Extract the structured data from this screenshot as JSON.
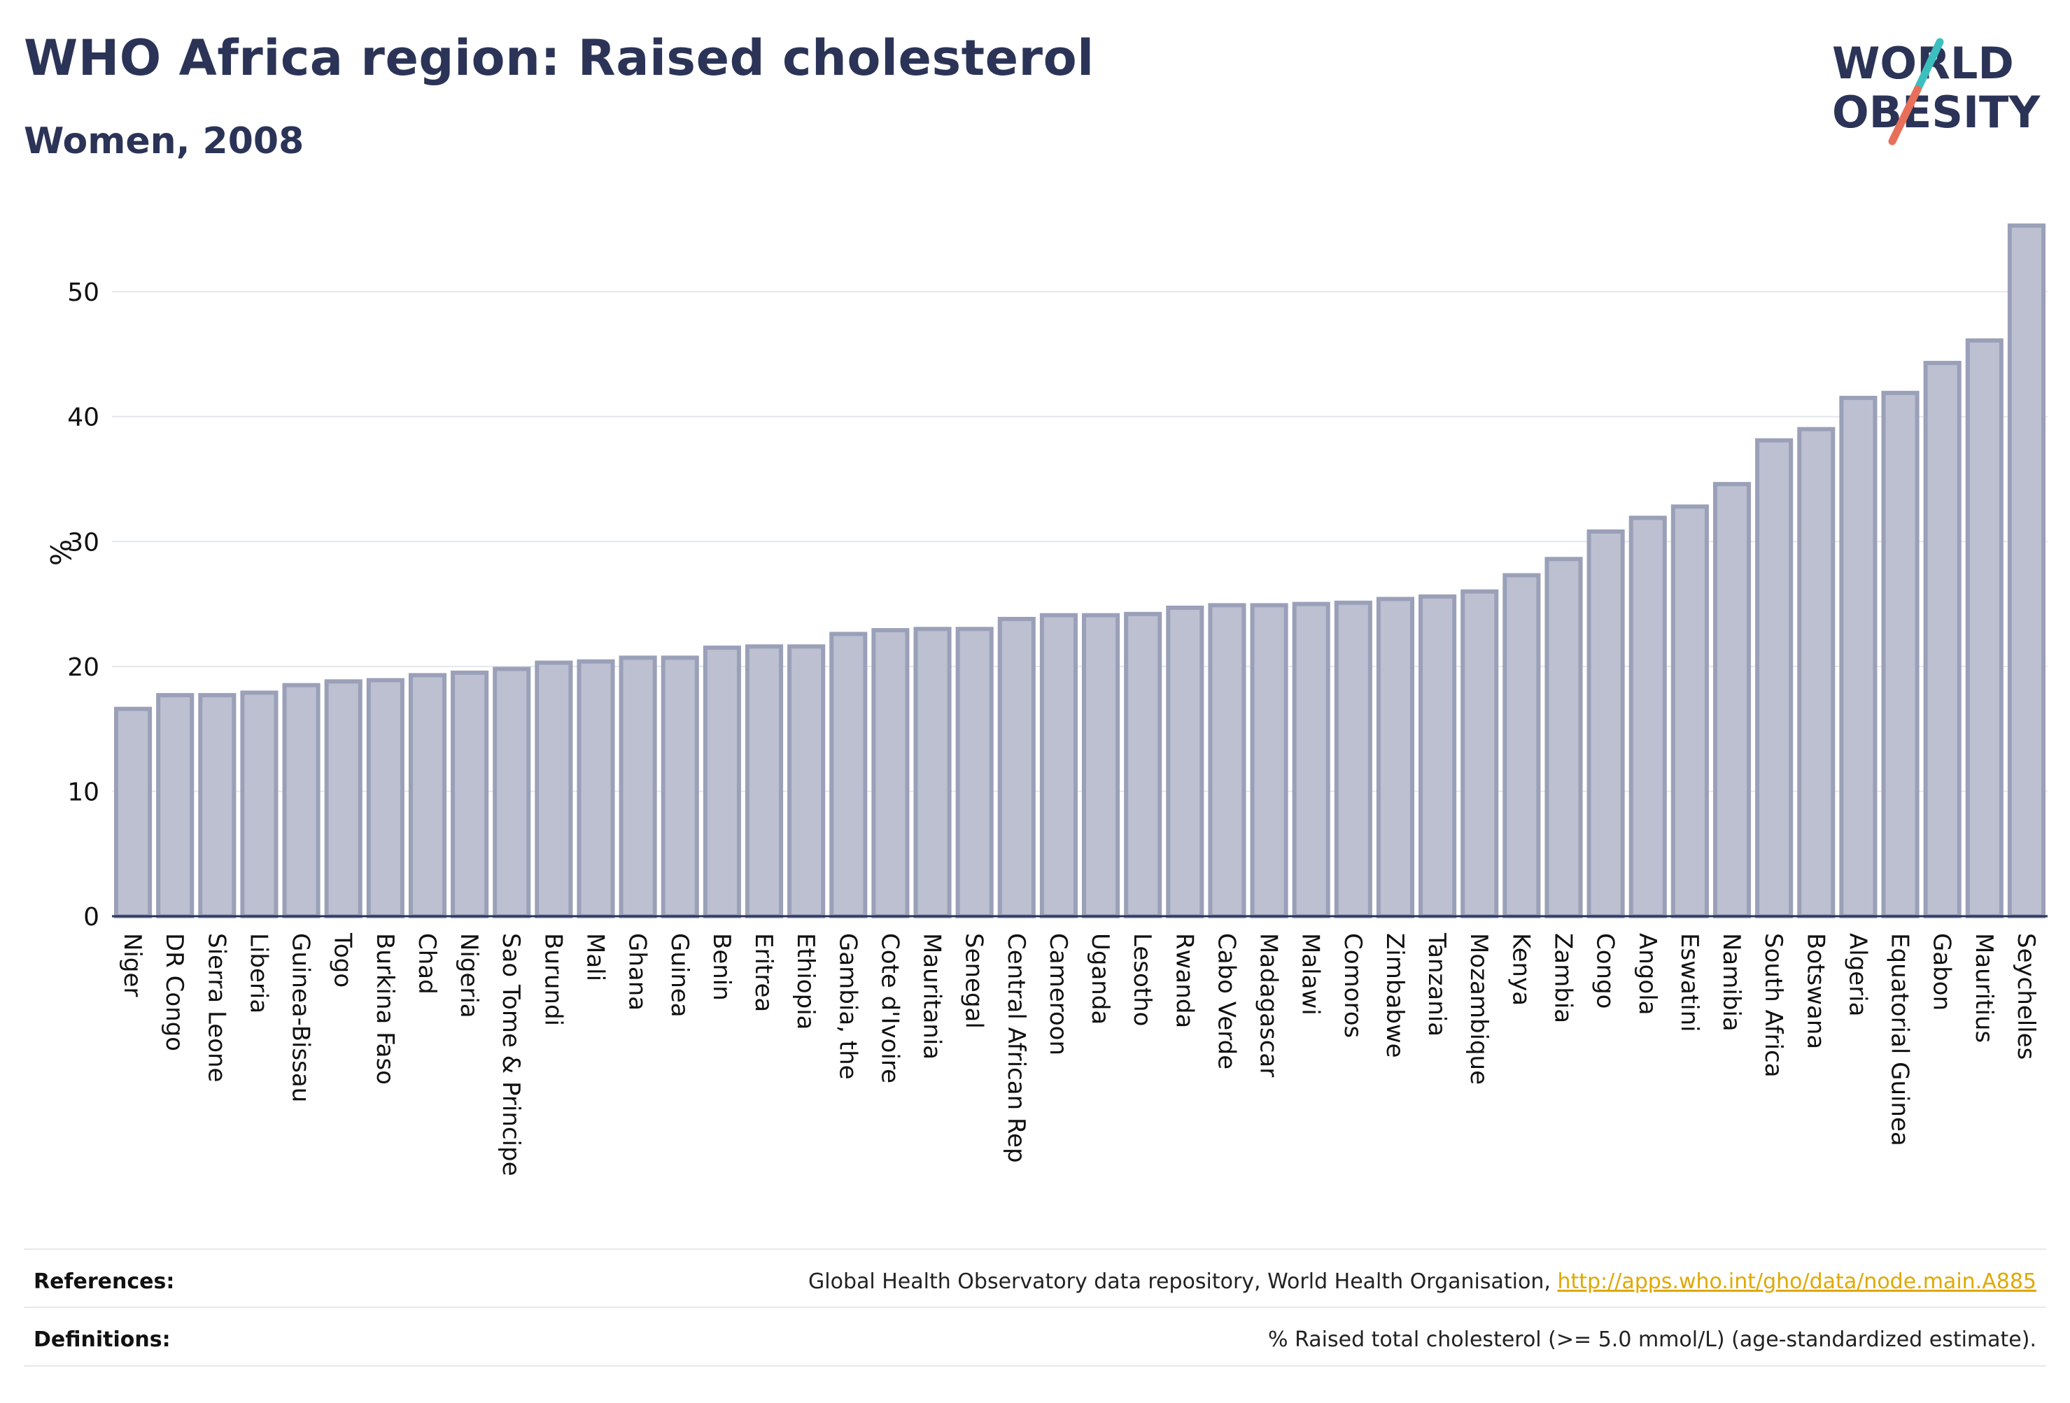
{
  "header": {
    "title": "WHO Africa region: Raised cholesterol",
    "subtitle": "Women, 2008"
  },
  "logo": {
    "line1": "WORLD",
    "line2": "OBESITY",
    "icon": "world-obesity-slash-logo"
  },
  "colors": {
    "title": "#2b3457",
    "bar_fill": "#bcc0d0",
    "bar_stroke": "#9aa0b8",
    "grid": "#e5e7ee",
    "axis": "#2b3457",
    "link": "#e0a800",
    "logo_teal": "#3dbfbf",
    "logo_coral": "#e8705a"
  },
  "chart_data": {
    "type": "bar",
    "ylabel": "%",
    "xlabel": "",
    "ylim": [
      0,
      56
    ],
    "yticks": [
      0,
      10,
      20,
      30,
      40,
      50
    ],
    "grid": true,
    "categories": [
      "Niger",
      "DR Congo",
      "Sierra Leone",
      "Liberia",
      "Guinea-Bissau",
      "Togo",
      "Burkina Faso",
      "Chad",
      "Nigeria",
      "Sao Tome & Principe",
      "Burundi",
      "Mali",
      "Ghana",
      "Guinea",
      "Benin",
      "Eritrea",
      "Ethiopia",
      "Gambia, the",
      "Cote d'Ivoire",
      "Mauritania",
      "Senegal",
      "Central African Rep",
      "Cameroon",
      "Uganda",
      "Lesotho",
      "Rwanda",
      "Cabo Verde",
      "Madagascar",
      "Malawi",
      "Comoros",
      "Zimbabwe",
      "Tanzania",
      "Mozambique",
      "Kenya",
      "Zambia",
      "Congo",
      "Angola",
      "Eswatini",
      "Namibia",
      "South Africa",
      "Botswana",
      "Algeria",
      "Equatorial Guinea",
      "Gabon",
      "Mauritius",
      "Seychelles"
    ],
    "values": [
      16.6,
      17.7,
      17.7,
      17.9,
      18.5,
      18.8,
      18.9,
      19.3,
      19.5,
      19.8,
      20.3,
      20.4,
      20.7,
      20.7,
      21.5,
      21.6,
      21.6,
      22.6,
      22.9,
      23.0,
      23.0,
      23.8,
      24.1,
      24.1,
      24.2,
      24.7,
      24.9,
      24.9,
      25.0,
      25.1,
      25.4,
      25.6,
      26.0,
      27.3,
      28.6,
      30.8,
      31.9,
      32.8,
      34.6,
      38.1,
      39.0,
      41.5,
      41.9,
      44.3,
      46.1,
      55.3
    ]
  },
  "footer": {
    "references_label": "References:",
    "references_text": "Global Health Observatory data repository, World Health Organisation, ",
    "references_link": "http://apps.who.int/gho/data/node.main.A885",
    "definitions_label": "Definitions:",
    "definitions_text": "% Raised total cholesterol (>= 5.0 mmol/L) (age-standardized estimate)."
  }
}
